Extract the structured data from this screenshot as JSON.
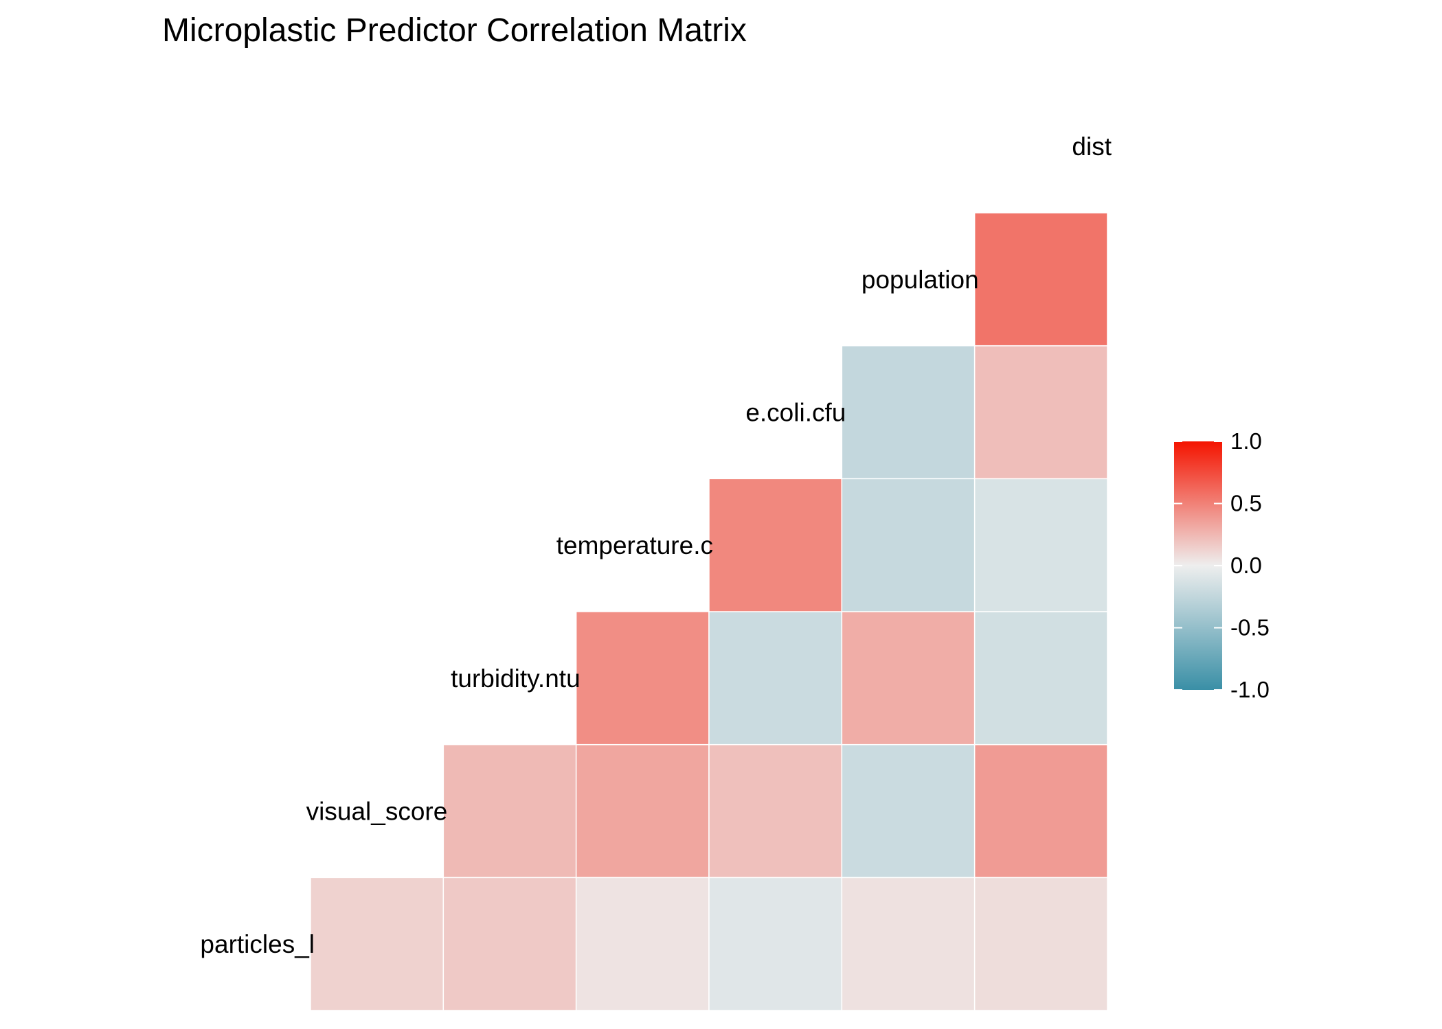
{
  "chart_data": {
    "type": "heatmap",
    "title": "Microplastic Predictor Correlation Matrix",
    "columns": [
      "particles_l",
      "visual_score",
      "turbidity.ntu",
      "temperature.c",
      "e.coli.cfu",
      "population"
    ],
    "rows": [
      "visual_score",
      "turbidity.ntu",
      "temperature.c",
      "e.coli.cfu",
      "population",
      "dist"
    ],
    "diagonal_labels": [
      "particles_l",
      "visual_score",
      "turbidity.ntu",
      "temperature.c",
      "e.coli.cfu",
      "population",
      "dist"
    ],
    "diagonal_labels_visible": [
      "particles_l",
      "visual_score",
      "turbidity.ntu",
      "temperature.c",
      "e.coli.cfu",
      "population",
      "dist"
    ],
    "values": [
      [
        0.13,
        0.17,
        0.05,
        -0.08,
        0.06,
        0.08
      ],
      [
        null,
        0.24,
        0.33,
        0.21,
        -0.2,
        0.38
      ],
      [
        null,
        null,
        0.44,
        -0.2,
        0.3,
        -0.16
      ],
      [
        null,
        null,
        null,
        0.47,
        -0.22,
        -0.12
      ],
      [
        null,
        null,
        null,
        null,
        -0.24,
        0.22
      ],
      [
        null,
        null,
        null,
        null,
        null,
        0.56
      ]
    ],
    "legend": {
      "position": "right",
      "limits": [
        -1,
        1
      ],
      "ticks": [
        1.0,
        0.5,
        0.0,
        -0.5,
        -1.0
      ],
      "tick_labels": [
        "1.0",
        "0.5",
        "0.0",
        "-0.5",
        "-1.0"
      ],
      "colors": {
        "low": "#3A8FA6",
        "mid": "#EEEEEE",
        "high": "#F41400"
      }
    },
    "grid": false
  }
}
